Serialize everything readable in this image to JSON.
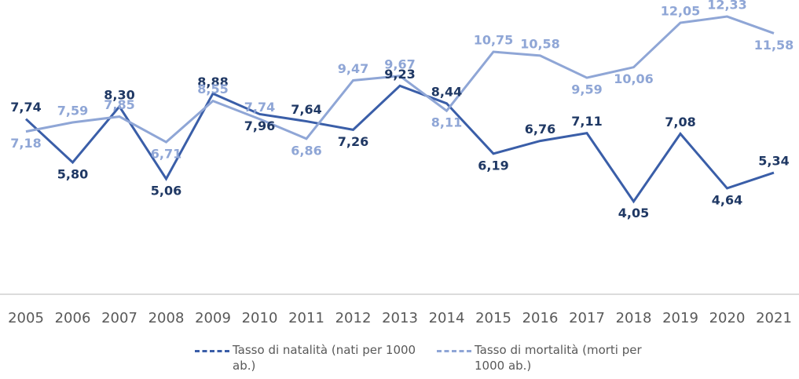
{
  "chart_data": {
    "type": "line",
    "categories": [
      "2005",
      "2006",
      "2007",
      "2008",
      "2009",
      "2010",
      "2011",
      "2012",
      "2013",
      "2014",
      "2015",
      "2016",
      "2017",
      "2018",
      "2019",
      "2020",
      "2021"
    ],
    "series": [
      {
        "name": "Tasso di natalità (nati per 1000 ab.)",
        "color": "#3a5ea8",
        "label_color": "#1f3864",
        "values": [
          7.74,
          5.8,
          8.3,
          5.06,
          8.88,
          7.96,
          7.64,
          7.26,
          9.23,
          8.44,
          6.19,
          6.76,
          7.11,
          4.05,
          7.08,
          4.64,
          5.34
        ],
        "value_labels": [
          "7,74",
          "5,80",
          "8,30",
          "5,06",
          "8,88",
          "7,96",
          "7,64",
          "7,26",
          "9,23",
          "8,44",
          "6,19",
          "6,76",
          "7,11",
          "4,05",
          "7,08",
          "4,64",
          "5,34"
        ]
      },
      {
        "name": "Tasso di mortalità (morti per 1000 ab.)",
        "color": "#8fa6d6",
        "label_color": "#8fa6d6",
        "values": [
          7.18,
          7.59,
          7.85,
          6.71,
          8.55,
          7.74,
          6.86,
          9.47,
          9.67,
          8.11,
          10.75,
          10.58,
          9.59,
          10.06,
          12.05,
          12.33,
          11.58
        ],
        "value_labels": [
          "7,18",
          "7,59",
          "7,85",
          "6,71",
          "8,55",
          "7,74",
          "6,86",
          "9,47",
          "9,67",
          "8,11",
          "10,75",
          "10,58",
          "9,59",
          "10,06",
          "12,05",
          "12,33",
          "11,58"
        ]
      }
    ],
    "ylim": [
      0,
      13
    ],
    "grid": false,
    "legend": "bottom"
  }
}
